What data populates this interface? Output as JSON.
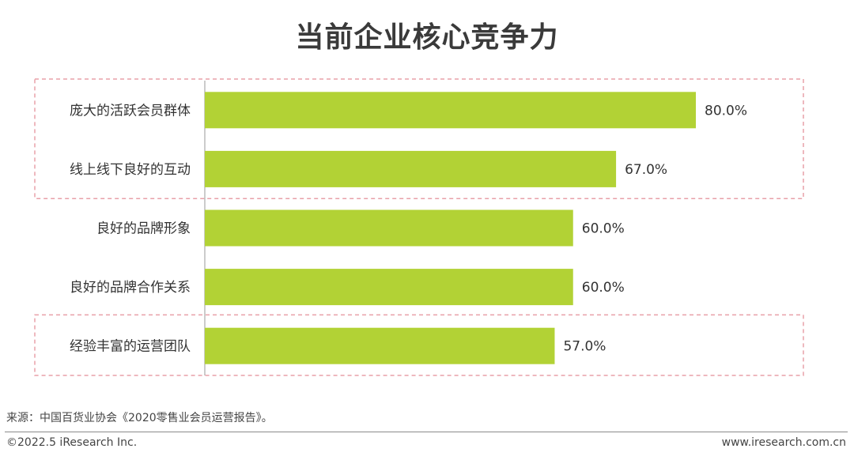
{
  "title": "当前企业核心竞争力",
  "chart_data": {
    "type": "bar",
    "orientation": "horizontal",
    "categories": [
      "庞大的活跃会员群体",
      "线上线下良好的互动",
      "良好的品牌形象",
      "良好的品牌合作关系",
      "经验丰富的运营团队"
    ],
    "values": [
      80.0,
      67.0,
      60.0,
      60.0,
      57.0
    ],
    "value_labels": [
      "80.0%",
      "67.0%",
      "60.0%",
      "60.0%",
      "57.0%"
    ],
    "xlim": [
      0,
      80
    ],
    "unit": "%",
    "bar_color": "#b2d235",
    "highlight_color": "#e8a0a8",
    "highlight_groups": [
      [
        0,
        1
      ],
      [
        4
      ]
    ]
  },
  "source": "来源：中国百货业协会《2020零售业会员运营报告》。",
  "copyright": "©2022.5 iResearch Inc.",
  "website": "www.iresearch.com.cn"
}
